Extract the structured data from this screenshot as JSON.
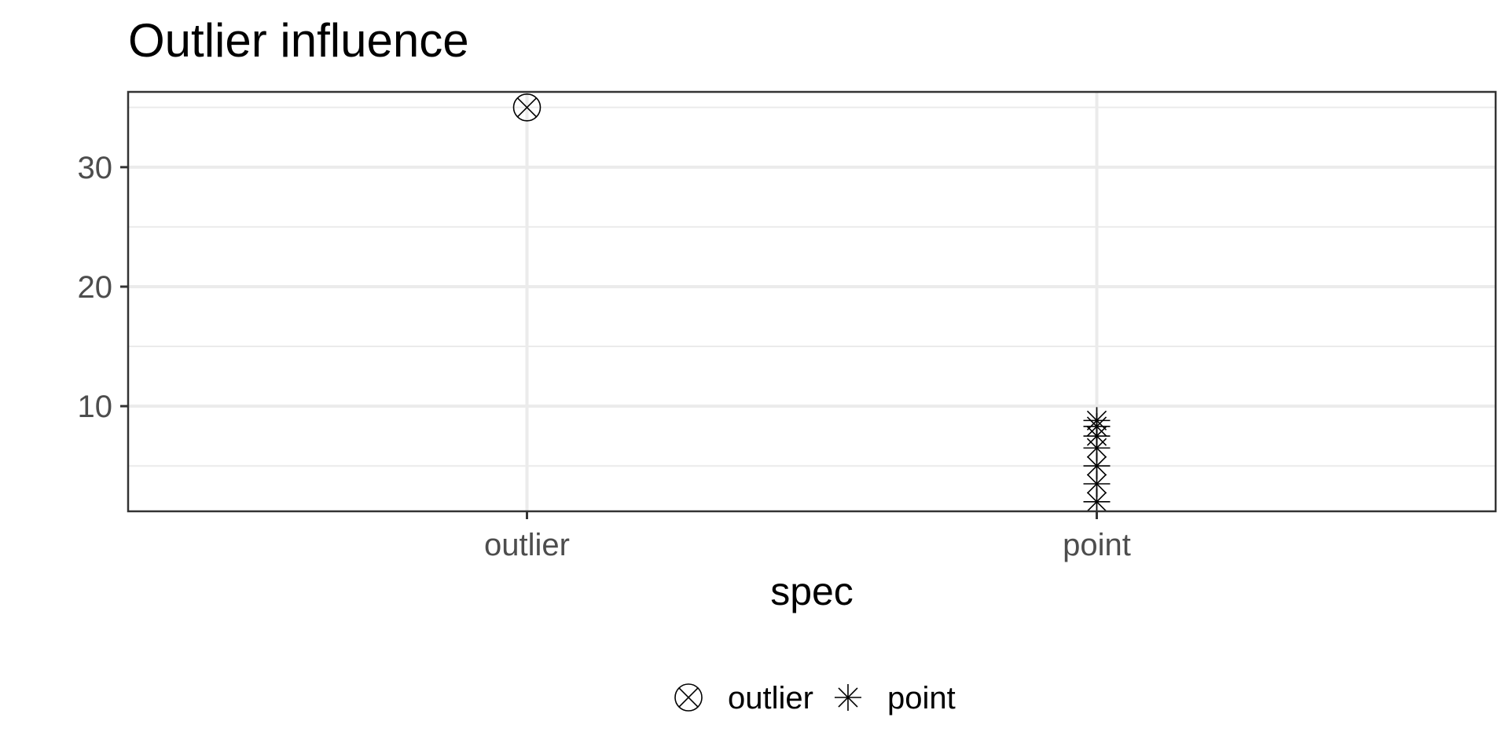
{
  "chart_data": {
    "type": "scatter",
    "title": "Outlier influence",
    "xlabel": "spec",
    "ylabel": "",
    "categories": [
      "outlier",
      "point"
    ],
    "ylim": [
      1.2,
      36.3
    ],
    "y_ticks": [
      10,
      20,
      30
    ],
    "y_minor_ticks": [
      5,
      15,
      25,
      35
    ],
    "grid": true,
    "legend": {
      "position": "bottom",
      "entries": [
        {
          "label": "outlier",
          "shape": "circle-x"
        },
        {
          "label": "point",
          "shape": "asterisk"
        }
      ]
    },
    "series": [
      {
        "name": "outlier",
        "shape": "circle-x",
        "points": [
          {
            "x": "outlier",
            "y": 35
          }
        ]
      },
      {
        "name": "point",
        "shape": "asterisk",
        "points": [
          {
            "x": "point",
            "y": 2.0
          },
          {
            "x": "point",
            "y": 3.5
          },
          {
            "x": "point",
            "y": 5.0
          },
          {
            "x": "point",
            "y": 6.5
          },
          {
            "x": "point",
            "y": 7.5
          },
          {
            "x": "point",
            "y": 8.3
          },
          {
            "x": "point",
            "y": 8.8
          }
        ]
      }
    ],
    "colors": {
      "marker": "#000000",
      "grid": "#ebebeb",
      "border": "#333333",
      "tick_label": "#4d4d4d"
    }
  }
}
